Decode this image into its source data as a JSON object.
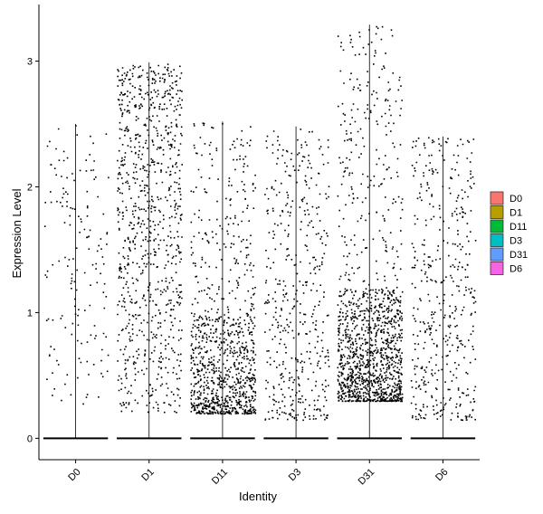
{
  "chart_data": {
    "type": "scatter",
    "subtype": "violin-jitter",
    "xlabel": "Identity",
    "ylabel": "Expression Level",
    "categories": [
      "D0",
      "D1",
      "D11",
      "D3",
      "D31",
      "D6"
    ],
    "ylim": [
      -0.17,
      3.45
    ],
    "yticks": [
      0,
      1,
      2,
      3
    ],
    "violin_max": [
      2.5,
      2.99,
      2.52,
      2.48,
      3.29,
      2.4
    ],
    "point_density": [
      160,
      900,
      1000,
      450,
      1350,
      450
    ],
    "legend": {
      "position": "right",
      "entries": [
        {
          "label": "D0",
          "color": "#F8766D"
        },
        {
          "label": "D1",
          "color": "#B79F00"
        },
        {
          "label": "D11",
          "color": "#00BA38"
        },
        {
          "label": "D3",
          "color": "#00BFC4"
        },
        {
          "label": "D31",
          "color": "#619CFF"
        },
        {
          "label": "D6",
          "color": "#F564E3"
        }
      ]
    },
    "grid": false
  }
}
